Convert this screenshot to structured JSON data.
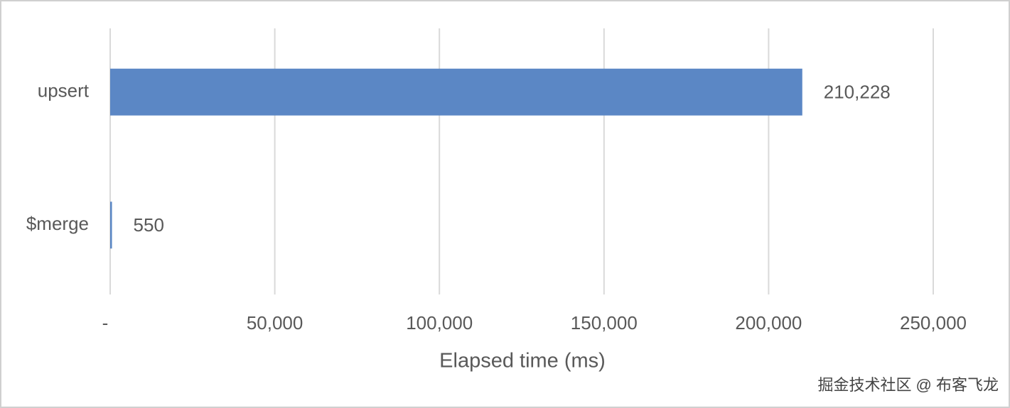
{
  "chart_data": {
    "type": "hbar",
    "categories": [
      "upsert",
      "$merge"
    ],
    "values": [
      210228,
      550
    ],
    "value_labels": [
      "210,228",
      "550"
    ],
    "color": "#5b87c5",
    "x_label": "Elapsed time (ms)",
    "xlim": [
      0,
      250000
    ],
    "xticks": [
      {
        "value": 0,
        "label": "-"
      },
      {
        "value": 50000,
        "label": "50,000"
      },
      {
        "value": 100000,
        "label": "100,000"
      },
      {
        "value": 150000,
        "label": "150,000"
      },
      {
        "value": 200000,
        "label": "200,000"
      },
      {
        "value": 250000,
        "label": "250,000"
      }
    ],
    "grid": true
  },
  "watermark": "掘金技术社区 @ 布客飞龙"
}
